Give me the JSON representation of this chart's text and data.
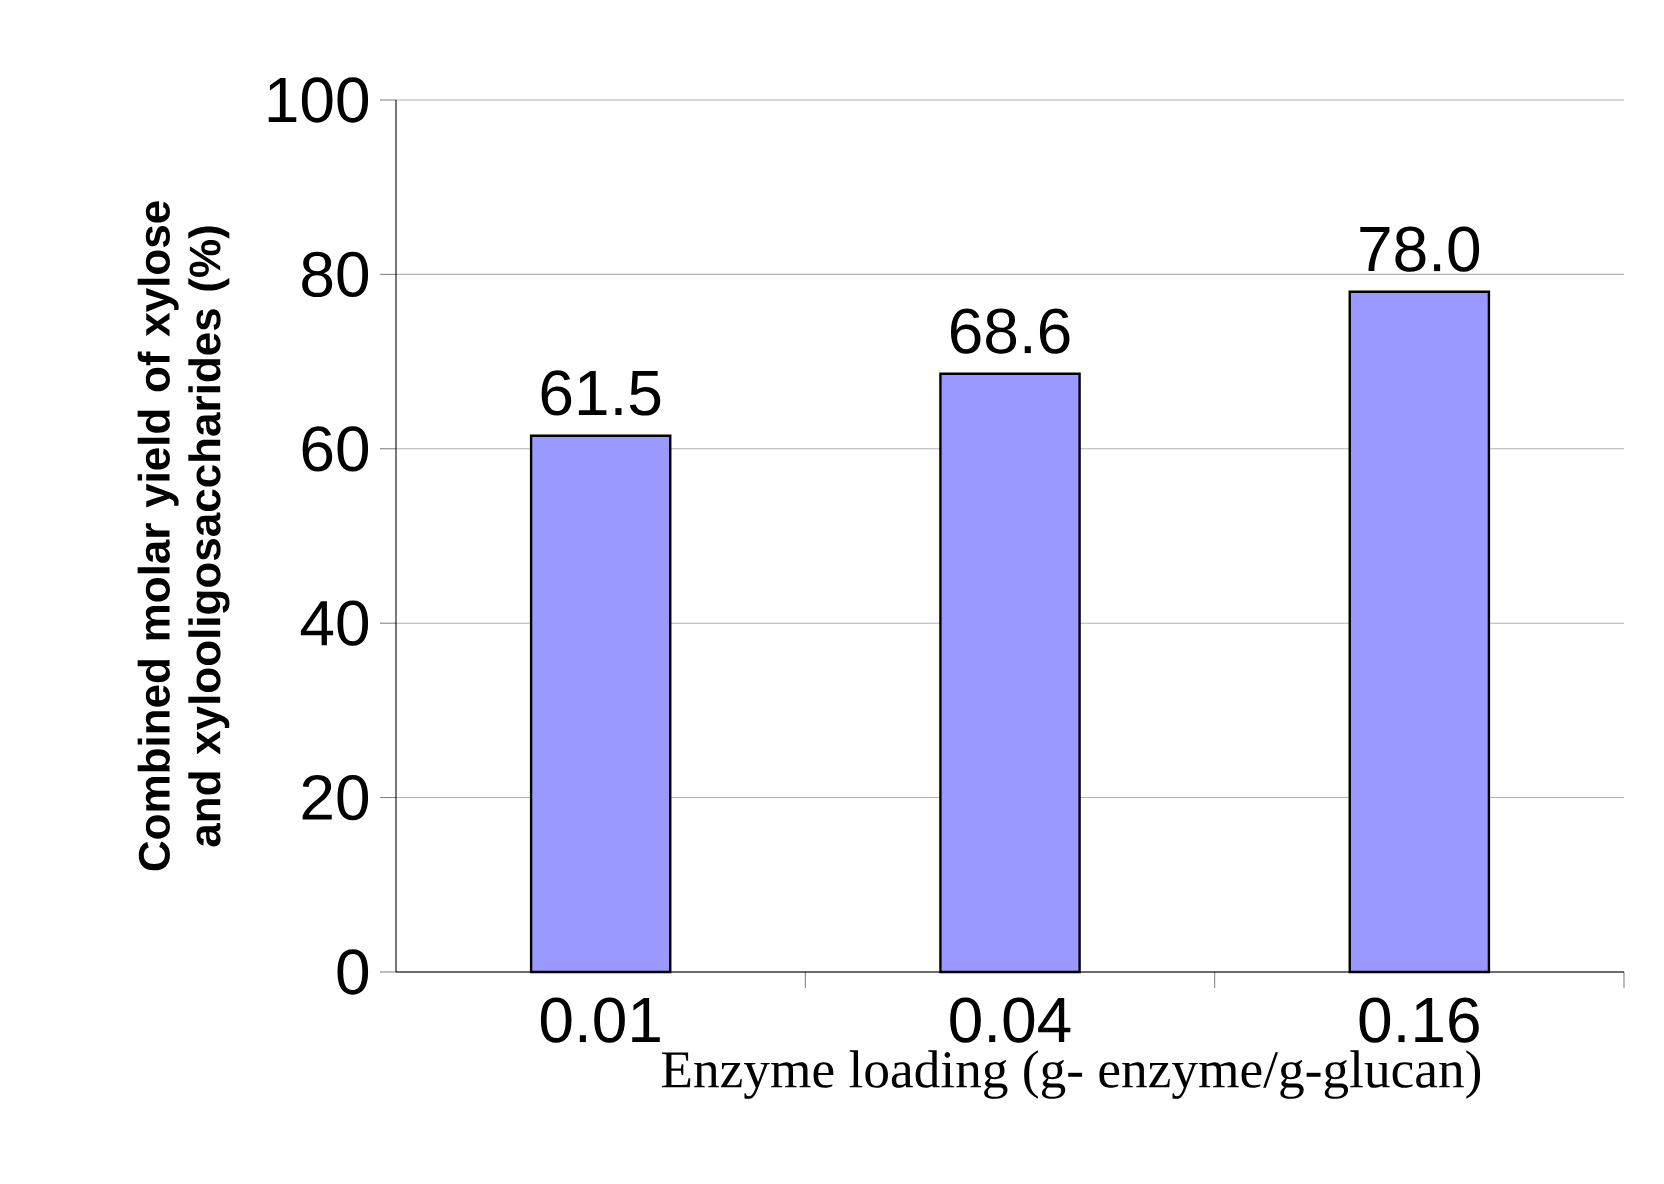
{
  "chart_data": {
    "type": "bar",
    "xlabel": "Enzyme loading (g- enzyme/g-glucan)",
    "ylabel": "Combined molar yield of xylose and xylooligosaccharides (%)",
    "categories": [
      "0.01",
      "0.04",
      "0.16"
    ],
    "values": [
      61.5,
      68.6,
      78.0
    ],
    "color": "#9999ff",
    "ylim": [
      0,
      100
    ],
    "yticks": [
      0,
      20,
      40,
      60,
      80,
      100
    ],
    "value_labels": [
      "61.5",
      "68.6",
      "78.0"
    ],
    "grid": "y"
  }
}
